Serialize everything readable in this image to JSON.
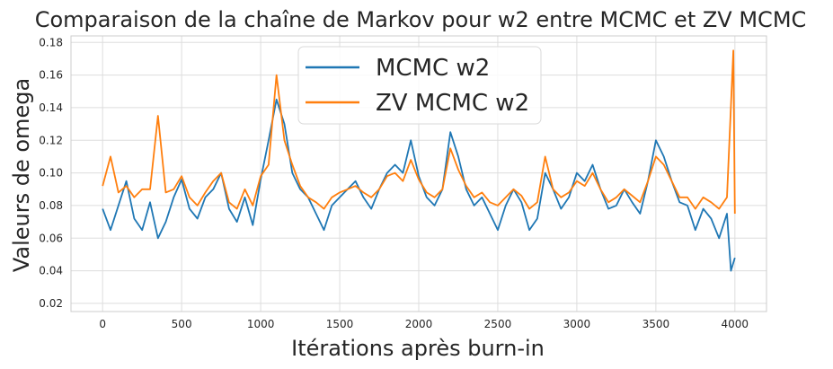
{
  "chart_data": {
    "type": "line",
    "title": "Comparaison de la chaîne de Markov pour w2 entre MCMC et ZV MCMC",
    "xlabel": "Itérations après burn-in",
    "ylabel": "Valeurs de omega",
    "xlim": [
      -200,
      4200
    ],
    "ylim": [
      0.015,
      0.184
    ],
    "x_ticks": [
      0,
      500,
      1000,
      1500,
      2000,
      2500,
      3000,
      3500,
      4000
    ],
    "y_ticks": [
      0.02,
      0.04,
      0.06,
      0.08,
      0.1,
      0.12,
      0.14,
      0.16,
      0.18
    ],
    "y_tick_labels": [
      "0.02",
      "0.04",
      "0.06",
      "0.08",
      "0.10",
      "0.12",
      "0.14",
      "0.16",
      "0.18"
    ],
    "grid": true,
    "legend_position": "top-center",
    "series": [
      {
        "name": "MCMC w2",
        "color": "#1f77b4",
        "x": [
          0,
          50,
          100,
          150,
          200,
          250,
          300,
          350,
          400,
          450,
          500,
          550,
          600,
          650,
          700,
          750,
          800,
          850,
          900,
          950,
          1000,
          1050,
          1100,
          1150,
          1200,
          1250,
          1300,
          1350,
          1400,
          1450,
          1500,
          1550,
          1600,
          1650,
          1700,
          1750,
          1800,
          1850,
          1900,
          1950,
          2000,
          2050,
          2100,
          2150,
          2200,
          2250,
          2300,
          2350,
          2400,
          2450,
          2500,
          2550,
          2600,
          2650,
          2700,
          2750,
          2800,
          2850,
          2900,
          2950,
          3000,
          3050,
          3100,
          3150,
          3200,
          3250,
          3300,
          3350,
          3400,
          3450,
          3500,
          3550,
          3600,
          3650,
          3700,
          3750,
          3800,
          3850,
          3900,
          3950,
          3975,
          4000
        ],
        "y": [
          0.078,
          0.065,
          0.08,
          0.095,
          0.072,
          0.065,
          0.082,
          0.06,
          0.07,
          0.085,
          0.096,
          0.078,
          0.072,
          0.085,
          0.09,
          0.1,
          0.078,
          0.07,
          0.085,
          0.068,
          0.096,
          0.12,
          0.145,
          0.13,
          0.1,
          0.09,
          0.085,
          0.075,
          0.065,
          0.08,
          0.085,
          0.09,
          0.095,
          0.085,
          0.078,
          0.09,
          0.1,
          0.105,
          0.1,
          0.12,
          0.098,
          0.085,
          0.08,
          0.09,
          0.125,
          0.11,
          0.09,
          0.08,
          0.085,
          0.075,
          0.065,
          0.08,
          0.09,
          0.082,
          0.065,
          0.072,
          0.1,
          0.09,
          0.078,
          0.085,
          0.1,
          0.095,
          0.105,
          0.09,
          0.078,
          0.08,
          0.09,
          0.082,
          0.075,
          0.095,
          0.12,
          0.11,
          0.095,
          0.082,
          0.08,
          0.065,
          0.078,
          0.072,
          0.06,
          0.075,
          0.04,
          0.048
        ]
      },
      {
        "name": "ZV MCMC w2",
        "color": "#ff7f0e",
        "x": [
          0,
          50,
          100,
          150,
          200,
          250,
          300,
          350,
          400,
          450,
          500,
          550,
          600,
          650,
          700,
          750,
          800,
          850,
          900,
          950,
          1000,
          1050,
          1100,
          1150,
          1200,
          1250,
          1300,
          1350,
          1400,
          1450,
          1500,
          1550,
          1600,
          1650,
          1700,
          1750,
          1800,
          1850,
          1900,
          1950,
          2000,
          2050,
          2100,
          2150,
          2200,
          2250,
          2300,
          2350,
          2400,
          2450,
          2500,
          2550,
          2600,
          2650,
          2700,
          2750,
          2800,
          2850,
          2900,
          2950,
          3000,
          3050,
          3100,
          3150,
          3200,
          3250,
          3300,
          3350,
          3400,
          3450,
          3500,
          3550,
          3600,
          3650,
          3700,
          3750,
          3800,
          3850,
          3900,
          3950,
          3990,
          4000
        ],
        "y": [
          0.092,
          0.11,
          0.088,
          0.092,
          0.085,
          0.09,
          0.09,
          0.135,
          0.088,
          0.09,
          0.098,
          0.085,
          0.08,
          0.088,
          0.095,
          0.1,
          0.082,
          0.078,
          0.09,
          0.08,
          0.098,
          0.105,
          0.16,
          0.12,
          0.105,
          0.092,
          0.085,
          0.082,
          0.078,
          0.085,
          0.088,
          0.09,
          0.092,
          0.088,
          0.085,
          0.09,
          0.098,
          0.1,
          0.095,
          0.108,
          0.096,
          0.088,
          0.085,
          0.09,
          0.115,
          0.102,
          0.092,
          0.085,
          0.088,
          0.082,
          0.08,
          0.085,
          0.09,
          0.086,
          0.078,
          0.082,
          0.11,
          0.09,
          0.085,
          0.088,
          0.095,
          0.092,
          0.1,
          0.09,
          0.082,
          0.085,
          0.09,
          0.086,
          0.082,
          0.095,
          0.11,
          0.105,
          0.095,
          0.085,
          0.085,
          0.078,
          0.085,
          0.082,
          0.078,
          0.085,
          0.175,
          0.075
        ]
      }
    ]
  }
}
